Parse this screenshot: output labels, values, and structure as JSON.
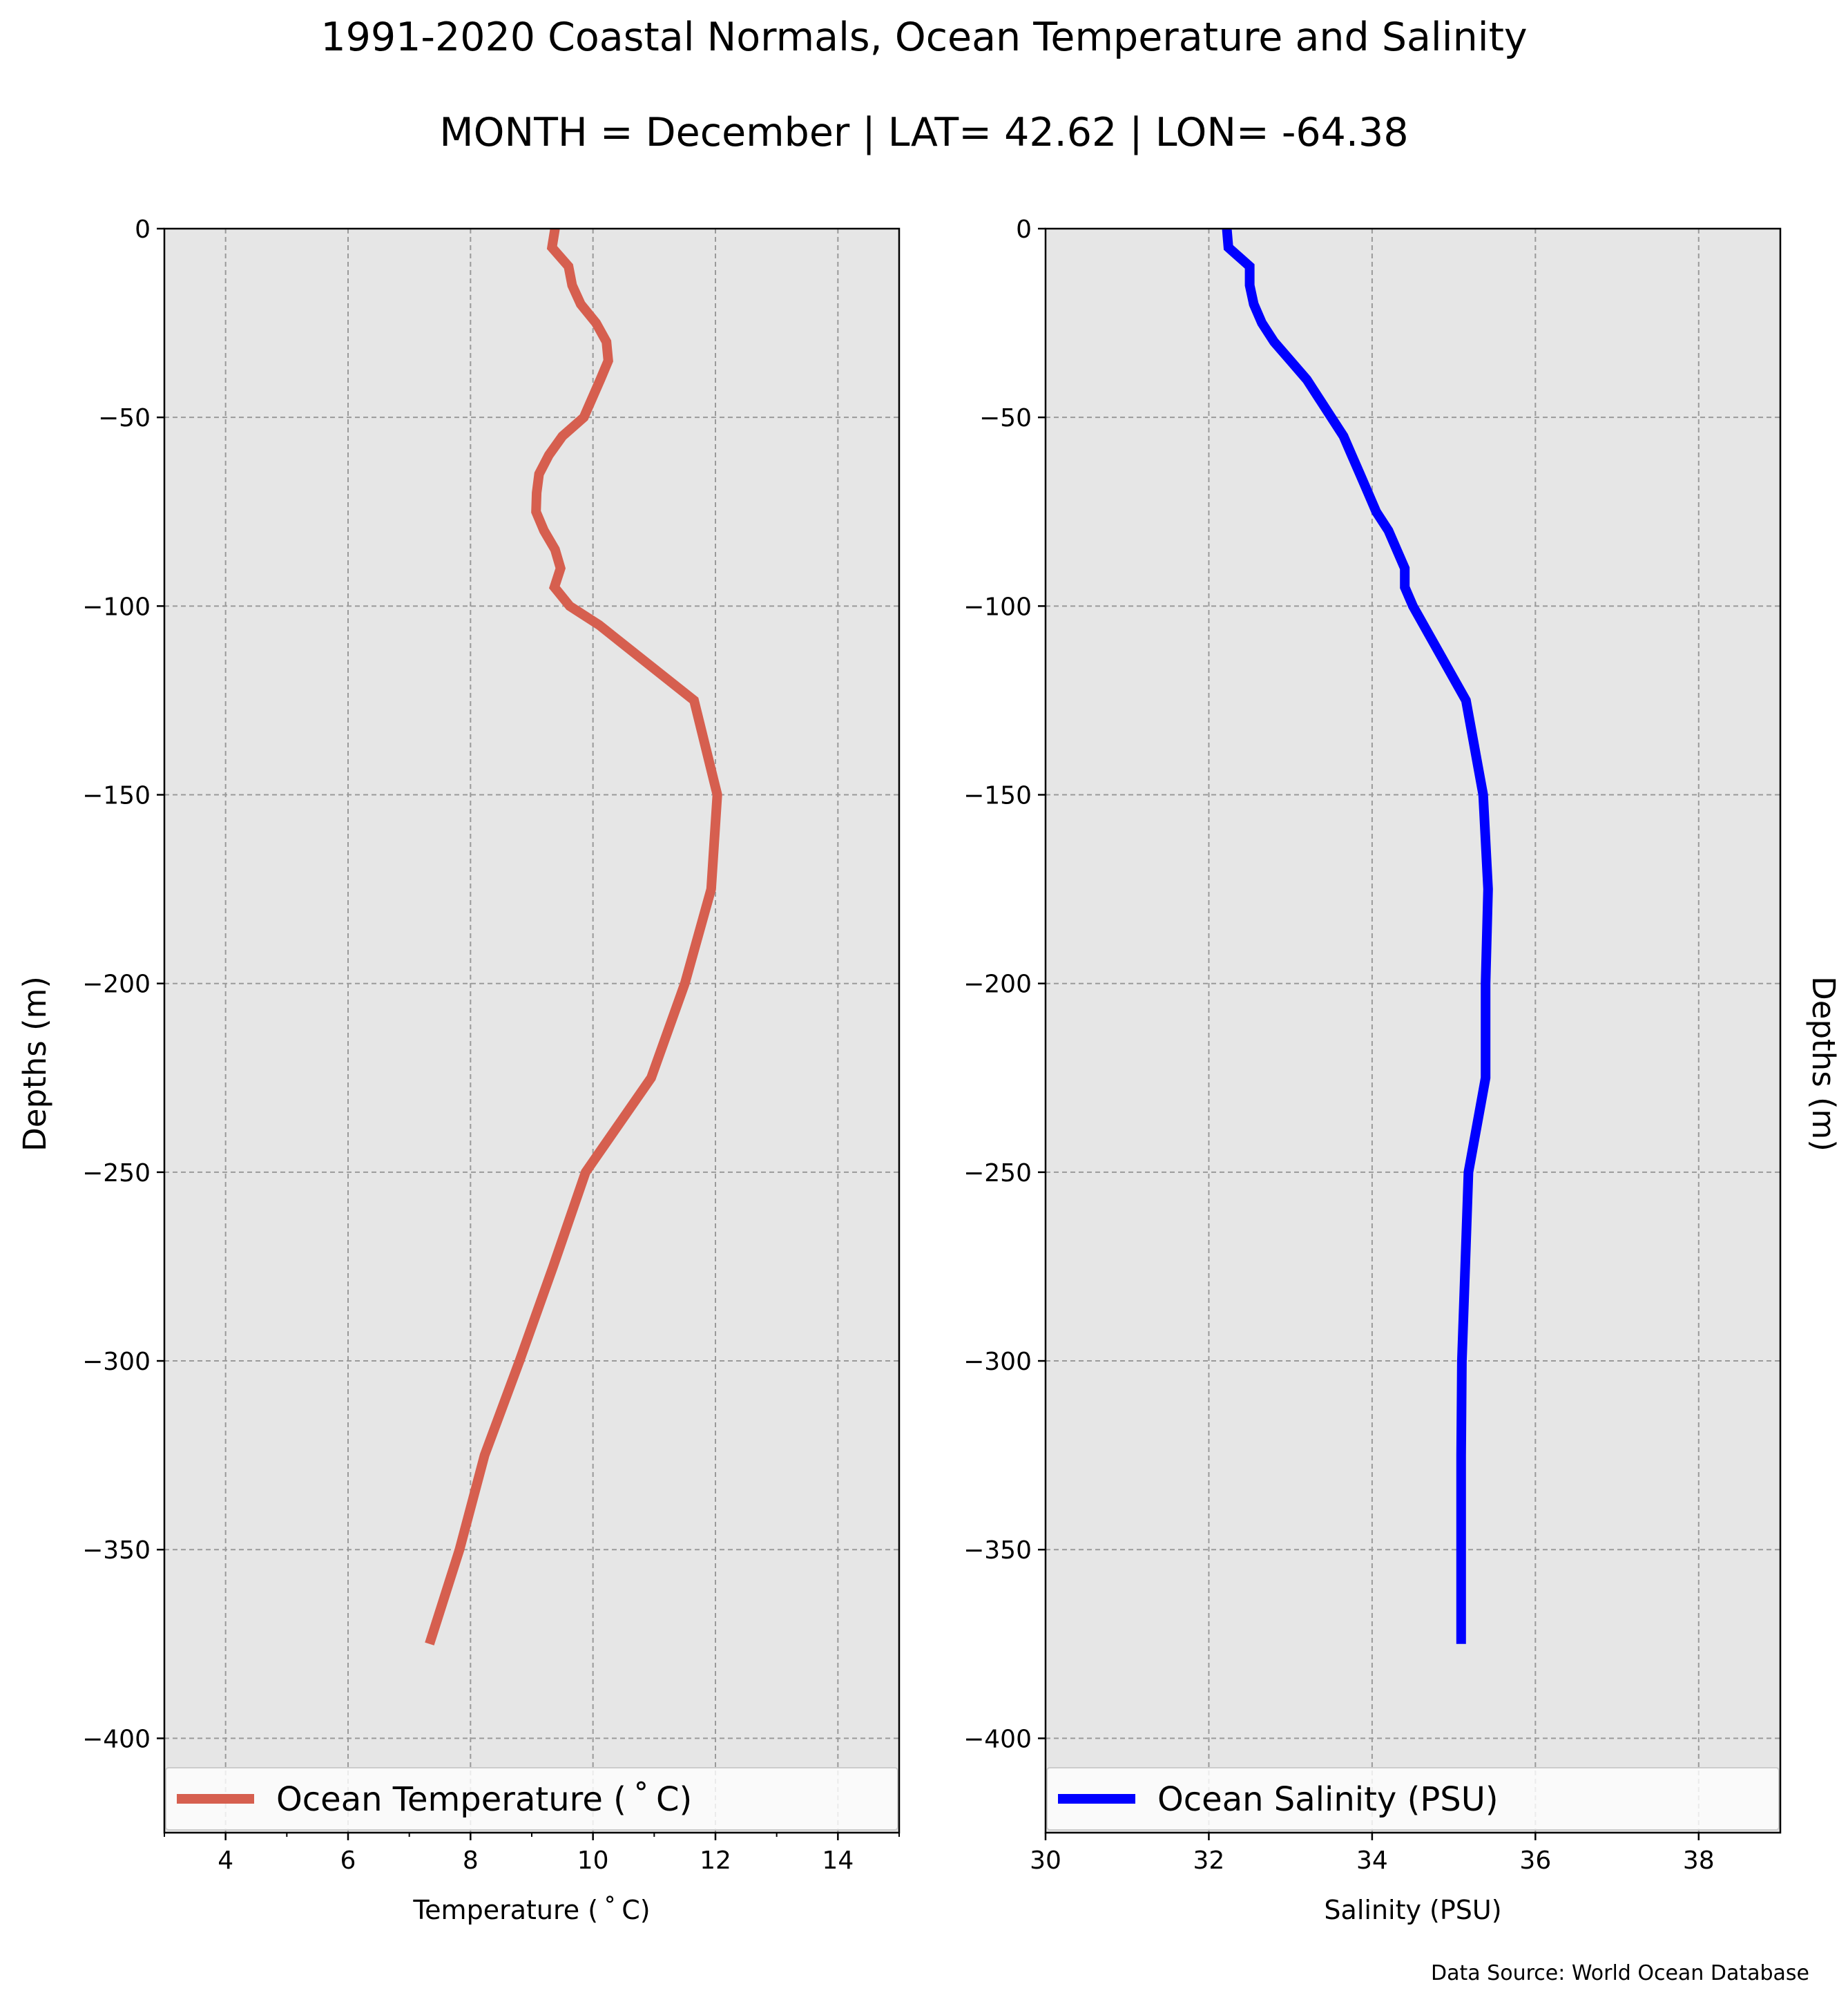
{
  "figure": {
    "title_line1": "1991-2020 Coastal Normals, Ocean Temperature and Salinity",
    "title_line2": "MONTH = December | LAT= 42.62 | LON= -64.38",
    "source": "Data Source: World Ocean Database"
  },
  "chart_data": [
    {
      "type": "line",
      "xlabel": "Temperature ($^\\circ$C)",
      "xlabel_display": "Temperature ( ˚ C)",
      "ylabel": "Depths (m)",
      "xlim": [
        3,
        15
      ],
      "ylim": [
        -425,
        0
      ],
      "xticks": [
        4,
        6,
        8,
        10,
        12,
        14
      ],
      "xtick_labels": [
        "4",
        "6",
        "8",
        "10",
        "12",
        "14"
      ],
      "xminor_ticks": [
        3,
        5,
        7,
        9,
        11,
        13,
        15
      ],
      "yticks": [
        0,
        -50,
        -100,
        -150,
        -200,
        -250,
        -300,
        -350,
        -400
      ],
      "ytick_labels": [
        "0",
        "−50",
        "−100",
        "−150",
        "−200",
        "−250",
        "−300",
        "−350",
        "−400"
      ],
      "grid": true,
      "legend_position": "lower center",
      "color": "#d65f4f",
      "series": [
        {
          "name": "Ocean Temperature ( ˚ C)",
          "x": [
            9.38,
            9.33,
            9.6,
            9.66,
            9.8,
            10.05,
            10.22,
            10.25,
            10.12,
            9.85,
            9.5,
            9.28,
            9.12,
            9.08,
            9.07,
            9.2,
            9.38,
            9.47,
            9.37,
            9.62,
            10.1,
            11.65,
            12.03,
            11.93,
            11.5,
            10.95,
            9.88,
            9.35,
            8.8,
            8.23,
            7.82,
            7.33
          ],
          "y": [
            0,
            -5,
            -10,
            -15,
            -20,
            -25,
            -30,
            -35,
            -40,
            -50,
            -55,
            -60,
            -65,
            -70,
            -75,
            -80,
            -85,
            -90,
            -95,
            -100,
            -105,
            -125,
            -150,
            -175,
            -200,
            -225,
            -250,
            -275,
            -300,
            -325,
            -350,
            -375
          ]
        }
      ]
    },
    {
      "type": "line",
      "xlabel": "Salinity (PSU)",
      "ylabel": "Depths (m)",
      "xlim": [
        30,
        39
      ],
      "ylim": [
        -425,
        0
      ],
      "xticks": [
        30,
        32,
        34,
        36,
        38
      ],
      "xtick_labels": [
        "30",
        "32",
        "34",
        "36",
        "38"
      ],
      "yticks": [
        0,
        -50,
        -100,
        -150,
        -200,
        -250,
        -300,
        -350,
        -400
      ],
      "ytick_labels": [
        "0",
        "−50",
        "−100",
        "−150",
        "−200",
        "−250",
        "−300",
        "−350",
        "−400"
      ],
      "grid": true,
      "legend_position": "lower center",
      "color": "#0000ff",
      "series": [
        {
          "name": "Ocean Salinity (PSU)",
          "x": [
            32.22,
            32.24,
            32.5,
            32.5,
            32.55,
            32.65,
            32.8,
            33.0,
            33.2,
            33.5,
            33.65,
            33.75,
            33.85,
            33.95,
            34.05,
            34.2,
            34.4,
            34.4,
            34.5,
            35.15,
            35.36,
            35.42,
            35.39,
            35.39,
            35.18,
            35.14,
            35.1,
            35.09,
            35.09,
            35.09
          ],
          "y": [
            0,
            -5,
            -10,
            -15,
            -20,
            -25,
            -30,
            -35,
            -40,
            -50,
            -55,
            -60,
            -65,
            -70,
            -75,
            -80,
            -90,
            -95,
            -100,
            -125,
            -150,
            -175,
            -200,
            -225,
            -250,
            -275,
            -300,
            -325,
            -350,
            -375
          ]
        }
      ]
    }
  ]
}
